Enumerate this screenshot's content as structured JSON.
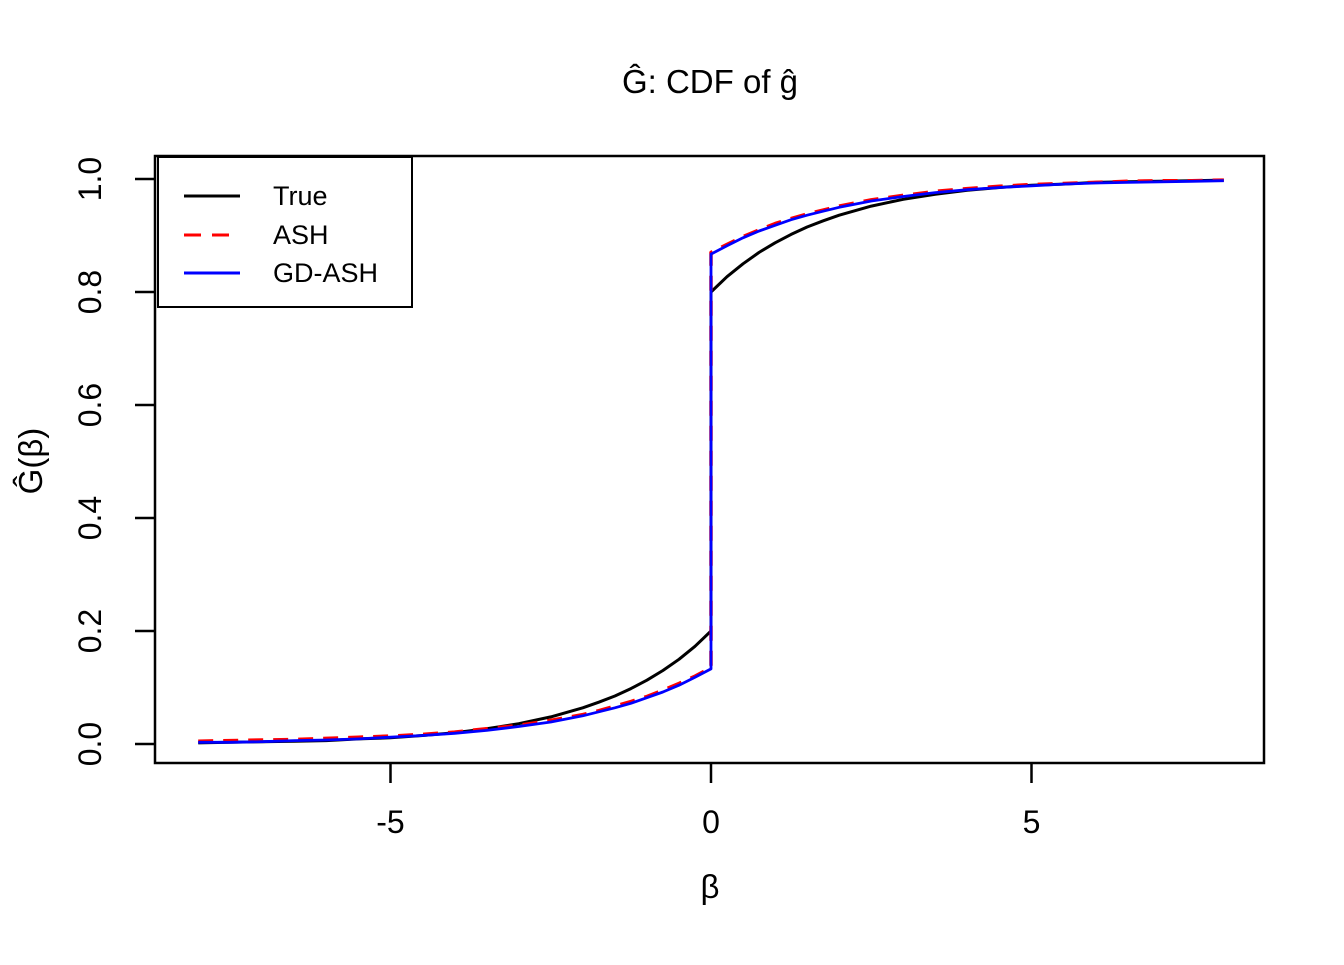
{
  "title": "Ĝ: CDF of ĝ",
  "x_axis": {
    "label": "β",
    "tick_labels": [
      "-5",
      "0",
      "5"
    ]
  },
  "y_axis": {
    "label": "Ĝ(β)",
    "tick_labels": [
      "0.0",
      "0.2",
      "0.4",
      "0.6",
      "0.8",
      "1.0"
    ]
  },
  "legend": {
    "items": [
      {
        "label": "True",
        "color": "#000000",
        "line_style": "solid"
      },
      {
        "label": "ASH",
        "color": "#FF0000",
        "line_style": "dashed"
      },
      {
        "label": "GD-ASH",
        "color": "#0000FF",
        "line_style": "solid"
      }
    ]
  },
  "chart_data": {
    "type": "line",
    "title": "Ĝ: CDF of ĝ",
    "xlabel": "β",
    "ylabel": "Ĝ(β)",
    "xlim": [
      -8.7,
      8.7
    ],
    "ylim": [
      -0.04,
      1.04
    ],
    "x_ticks": [
      -5,
      0,
      5
    ],
    "y_ticks": [
      0.0,
      0.2,
      0.4,
      0.6,
      0.8,
      1.0
    ],
    "grid": false,
    "legend_position": "top-left",
    "description": "Mixture CDFs with a point mass at beta=0. True jumps from 0.20 to 0.80 at 0; ASH and GD-ASH (nearly identical) jump from about 0.13 to 0.87. All curves rise from ~0 at beta=-8 to ~1 at beta=8.",
    "x": [
      -8,
      -7.5,
      -7,
      -6.5,
      -6,
      -5.5,
      -5,
      -4.5,
      -4,
      -3.5,
      -3,
      -2.5,
      -2,
      -1.75,
      -1.5,
      -1.25,
      -1,
      -0.75,
      -0.5,
      -0.25,
      0,
      0,
      0.25,
      0.5,
      0.75,
      1,
      1.25,
      1.5,
      1.75,
      2,
      2.5,
      3,
      3.5,
      4,
      4.5,
      5,
      5.5,
      6,
      6.5,
      7,
      7.5,
      8
    ],
    "series": [
      {
        "name": "True",
        "color": "#000000",
        "dash": "solid",
        "width": 3,
        "y": [
          0.002,
          0.003,
          0.004,
          0.005,
          0.006,
          0.009,
          0.011,
          0.015,
          0.02,
          0.027,
          0.036,
          0.048,
          0.064,
          0.074,
          0.085,
          0.098,
          0.113,
          0.13,
          0.15,
          0.173,
          0.2,
          0.8,
          0.827,
          0.85,
          0.87,
          0.887,
          0.902,
          0.915,
          0.926,
          0.936,
          0.952,
          0.964,
          0.973,
          0.98,
          0.985,
          0.989,
          0.991,
          0.994,
          0.995,
          0.996,
          0.997,
          0.998
        ]
      },
      {
        "name": "ASH",
        "color": "#FF0000",
        "dash": "dashed",
        "width": 3.5,
        "y": [
          0.005,
          0.006,
          0.007,
          0.008,
          0.01,
          0.012,
          0.014,
          0.017,
          0.021,
          0.027,
          0.033,
          0.042,
          0.052,
          0.059,
          0.067,
          0.075,
          0.084,
          0.095,
          0.107,
          0.12,
          0.135,
          0.87,
          0.884,
          0.898,
          0.91,
          0.921,
          0.93,
          0.938,
          0.945,
          0.952,
          0.963,
          0.971,
          0.978,
          0.983,
          0.987,
          0.99,
          0.992,
          0.994,
          0.996,
          0.997,
          0.997,
          0.998
        ]
      },
      {
        "name": "GD-ASH",
        "color": "#0000FF",
        "dash": "solid",
        "width": 2.8,
        "y": [
          0.003,
          0.003,
          0.004,
          0.006,
          0.007,
          0.009,
          0.012,
          0.015,
          0.019,
          0.024,
          0.031,
          0.039,
          0.05,
          0.057,
          0.064,
          0.072,
          0.082,
          0.092,
          0.104,
          0.118,
          0.133,
          0.867,
          0.882,
          0.896,
          0.908,
          0.918,
          0.928,
          0.936,
          0.943,
          0.95,
          0.961,
          0.969,
          0.976,
          0.981,
          0.985,
          0.988,
          0.991,
          0.993,
          0.994,
          0.995,
          0.996,
          0.997
        ]
      }
    ]
  }
}
